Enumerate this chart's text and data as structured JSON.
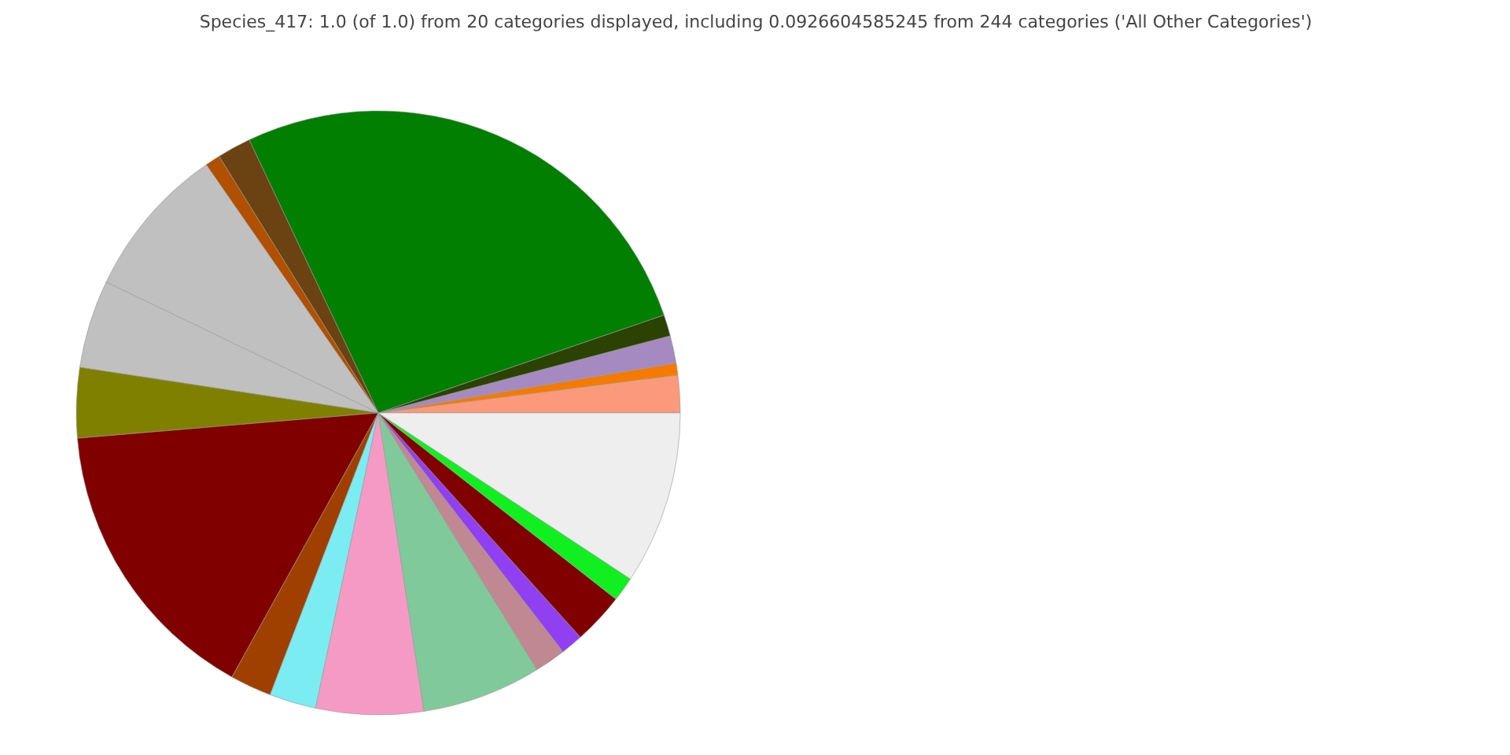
{
  "chart_data": {
    "type": "pie",
    "title": "Species_417: 1.0 (of 1.0) from 20 categories displayed, including 0.0926604585245 from 244 categories ('All Other Categories')",
    "categories": [
      null,
      null,
      null,
      null,
      null,
      null,
      null,
      null,
      null,
      null,
      null,
      null,
      null,
      null,
      null,
      null,
      null,
      null,
      null,
      null
    ],
    "values": [
      2.0,
      0.64,
      1.47,
      1.14,
      26.78,
      1.81,
      0.81,
      8.22,
      4.72,
      3.75,
      15.61,
      2.22,
      2.5,
      5.75,
      6.39,
      1.67,
      1.19,
      2.75,
      1.31,
      9.27
    ],
    "colors": [
      "#fa9a7a",
      "#f57a00",
      "#a58ac2",
      "#2c4203",
      "#007f00",
      "#6b4212",
      "#b05000",
      "#c0c0c0",
      "#c0c0c0",
      "#808000",
      "#800000",
      "#a04000",
      "#7aecf2",
      "#f59ac5",
      "#80c99a",
      "#c08890",
      "#9040f0",
      "#800000",
      "#10f020",
      "#eeeeee"
    ]
  }
}
